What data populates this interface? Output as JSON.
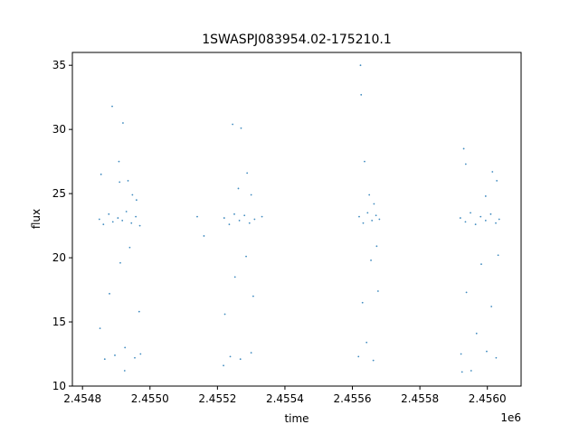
{
  "chart_data": {
    "type": "scatter",
    "title": "1SWASPJ083954.02-175210.1",
    "xlabel": "time",
    "ylabel": "flux",
    "x_offset_label": "1e6",
    "xlim": [
      2454770,
      2456100
    ],
    "ylim": [
      10,
      36
    ],
    "x_ticks": [
      2454800,
      2455000,
      2455200,
      2455400,
      2455600,
      2455800,
      2456000
    ],
    "x_tick_labels": [
      "2.4548",
      "2.4550",
      "2.4552",
      "2.4554",
      "2.4556",
      "2.4558",
      "2.4560"
    ],
    "y_ticks": [
      10,
      15,
      20,
      25,
      30,
      35
    ],
    "y_tick_labels": [
      "10",
      "15",
      "20",
      "25",
      "30",
      "35"
    ],
    "grid": false,
    "marker_color": "#1f77b4",
    "series": [
      {
        "points": [
          [
            2454850,
            23.0
          ],
          [
            2454862,
            22.6
          ],
          [
            2454878,
            23.4
          ],
          [
            2454890,
            22.8
          ],
          [
            2454905,
            23.1
          ],
          [
            2454918,
            22.9
          ],
          [
            2454930,
            23.6
          ],
          [
            2454945,
            22.7
          ],
          [
            2454958,
            23.2
          ],
          [
            2454970,
            22.5
          ],
          [
            2454852,
            14.5
          ],
          [
            2454866,
            12.1
          ],
          [
            2454880,
            17.2
          ],
          [
            2454896,
            12.4
          ],
          [
            2454912,
            19.6
          ],
          [
            2454926,
            13.0
          ],
          [
            2454940,
            20.8
          ],
          [
            2454955,
            12.2
          ],
          [
            2454968,
            15.8
          ],
          [
            2454972,
            12.5
          ],
          [
            2454855,
            26.5
          ],
          [
            2454888,
            31.8
          ],
          [
            2454908,
            27.5
          ],
          [
            2454910,
            25.9
          ],
          [
            2454920,
            30.5
          ],
          [
            2454935,
            26.0
          ],
          [
            2454948,
            24.9
          ],
          [
            2454925,
            11.2
          ],
          [
            2454960,
            24.5
          ],
          [
            2455140,
            23.2
          ],
          [
            2455160,
            21.7
          ],
          [
            2455220,
            23.1
          ],
          [
            2455235,
            22.6
          ],
          [
            2455250,
            23.4
          ],
          [
            2455265,
            22.9
          ],
          [
            2455280,
            23.3
          ],
          [
            2455295,
            22.7
          ],
          [
            2455310,
            23.0
          ],
          [
            2455332,
            23.2
          ],
          [
            2455222,
            15.6
          ],
          [
            2455238,
            12.3
          ],
          [
            2455252,
            18.5
          ],
          [
            2455268,
            12.1
          ],
          [
            2455285,
            20.1
          ],
          [
            2455300,
            12.6
          ],
          [
            2455306,
            17.0
          ],
          [
            2455218,
            11.6
          ],
          [
            2455245,
            30.4
          ],
          [
            2455270,
            30.1
          ],
          [
            2455288,
            26.6
          ],
          [
            2455300,
            24.9
          ],
          [
            2455262,
            25.4
          ],
          [
            2455620,
            23.2
          ],
          [
            2455632,
            22.7
          ],
          [
            2455645,
            23.5
          ],
          [
            2455658,
            22.9
          ],
          [
            2455670,
            23.3
          ],
          [
            2455680,
            23.0
          ],
          [
            2455618,
            12.3
          ],
          [
            2455630,
            16.5
          ],
          [
            2455642,
            13.4
          ],
          [
            2455655,
            19.8
          ],
          [
            2455662,
            12.0
          ],
          [
            2455672,
            20.9
          ],
          [
            2455676,
            17.4
          ],
          [
            2455624,
            35.0
          ],
          [
            2455626,
            32.7
          ],
          [
            2455636,
            27.5
          ],
          [
            2455650,
            24.9
          ],
          [
            2455664,
            24.2
          ],
          [
            2455920,
            23.1
          ],
          [
            2455935,
            22.8
          ],
          [
            2455950,
            23.5
          ],
          [
            2455965,
            22.6
          ],
          [
            2455980,
            23.2
          ],
          [
            2455995,
            22.9
          ],
          [
            2456010,
            23.4
          ],
          [
            2456025,
            22.7
          ],
          [
            2456035,
            23.0
          ],
          [
            2455922,
            12.5
          ],
          [
            2455938,
            17.3
          ],
          [
            2455952,
            11.2
          ],
          [
            2455968,
            14.1
          ],
          [
            2455982,
            19.5
          ],
          [
            2455998,
            12.7
          ],
          [
            2456012,
            16.2
          ],
          [
            2456026,
            12.2
          ],
          [
            2456032,
            20.2
          ],
          [
            2455930,
            28.5
          ],
          [
            2455936,
            27.3
          ],
          [
            2455925,
            11.1
          ],
          [
            2456015,
            26.7
          ],
          [
            2456028,
            26.0
          ],
          [
            2455995,
            24.8
          ]
        ]
      }
    ]
  }
}
